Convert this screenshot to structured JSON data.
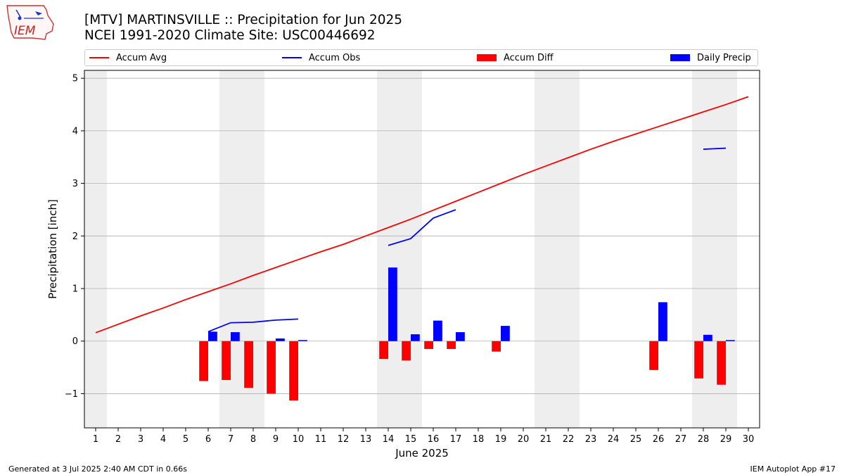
{
  "header": {
    "title_line1": "[MTV] MARTINSVILLE :: Precipitation for Jun 2025",
    "title_line2": "NCEI 1991-2020 Climate Site: USC00446692"
  },
  "logo": {
    "text": "IEM"
  },
  "footer": {
    "left": "Generated at 3 Jul 2025 2:40 AM CDT in 0.66s",
    "right": "IEM Autoplot App #17"
  },
  "chart_data": {
    "type": "bar",
    "xlabel": "June 2025",
    "ylabel": "Precipitation [inch]",
    "xlim": [
      0.5,
      30.5
    ],
    "ylim": [
      -1.65,
      5.15
    ],
    "yticks": [
      -1,
      0,
      1,
      2,
      3,
      4,
      5
    ],
    "ytick_labels": [
      "−1",
      "0",
      "1",
      "2",
      "3",
      "4",
      "5"
    ],
    "xticks": [
      1,
      2,
      3,
      4,
      5,
      6,
      7,
      8,
      9,
      10,
      11,
      12,
      13,
      14,
      15,
      16,
      17,
      18,
      19,
      20,
      21,
      22,
      23,
      24,
      25,
      26,
      27,
      28,
      29,
      30
    ],
    "grid": "horizontal",
    "weekend_shading": [
      [
        0.5,
        1.5
      ],
      [
        6.5,
        8.5
      ],
      [
        13.5,
        15.5
      ],
      [
        20.5,
        22.5
      ],
      [
        27.5,
        29.5
      ]
    ],
    "legend": {
      "placement": "top",
      "entries": [
        {
          "label": "Accum Avg",
          "kind": "line",
          "color": "#ff0000"
        },
        {
          "label": "Accum Obs",
          "kind": "line",
          "color": "#0000ff"
        },
        {
          "label": "Accum Diff",
          "kind": "bar",
          "color": "#ff0000"
        },
        {
          "label": "Daily Precip",
          "kind": "bar",
          "color": "#0000ff"
        }
      ]
    },
    "accum_avg": {
      "color": "#ff0000",
      "days": [
        1,
        2,
        3,
        4,
        5,
        6,
        7,
        8,
        9,
        10,
        11,
        12,
        13,
        14,
        15,
        16,
        17,
        18,
        19,
        20,
        21,
        22,
        23,
        24,
        25,
        26,
        27,
        28,
        29,
        30
      ],
      "values": [
        0.16,
        0.32,
        0.48,
        0.63,
        0.79,
        0.94,
        1.09,
        1.25,
        1.4,
        1.55,
        1.7,
        1.84,
        2.0,
        2.16,
        2.32,
        2.49,
        2.66,
        2.83,
        3.0,
        3.17,
        3.33,
        3.49,
        3.65,
        3.8,
        3.94,
        4.08,
        4.22,
        4.36,
        4.5,
        4.65
      ]
    },
    "accum_obs": {
      "color": "#0000ff",
      "segments": [
        {
          "days": [
            6,
            7,
            8,
            9,
            10
          ],
          "values": [
            0.18,
            0.35,
            0.36,
            0.4,
            0.42
          ]
        },
        {
          "days": [
            14,
            15,
            16,
            17
          ],
          "values": [
            1.82,
            1.95,
            2.34,
            2.5
          ]
        },
        {
          "days": [
            28,
            29
          ],
          "values": [
            3.65,
            3.67
          ]
        }
      ]
    },
    "accum_diff": {
      "color": "#ff0000",
      "days": [
        6,
        7,
        8,
        9,
        10,
        14,
        15,
        16,
        17,
        19,
        26,
        28,
        29
      ],
      "values": [
        -0.76,
        -0.74,
        -0.89,
        -1.0,
        -1.13,
        -0.34,
        -0.37,
        -0.15,
        -0.15,
        -0.2,
        -0.55,
        -0.71,
        -0.83
      ]
    },
    "daily_precip": {
      "color": "#0000ff",
      "days": [
        6,
        7,
        9,
        10,
        14,
        15,
        16,
        17,
        19,
        26,
        28,
        29
      ],
      "values": [
        0.18,
        0.17,
        0.05,
        0.02,
        1.4,
        0.13,
        0.39,
        0.17,
        0.29,
        0.74,
        0.12,
        0.02
      ]
    }
  }
}
